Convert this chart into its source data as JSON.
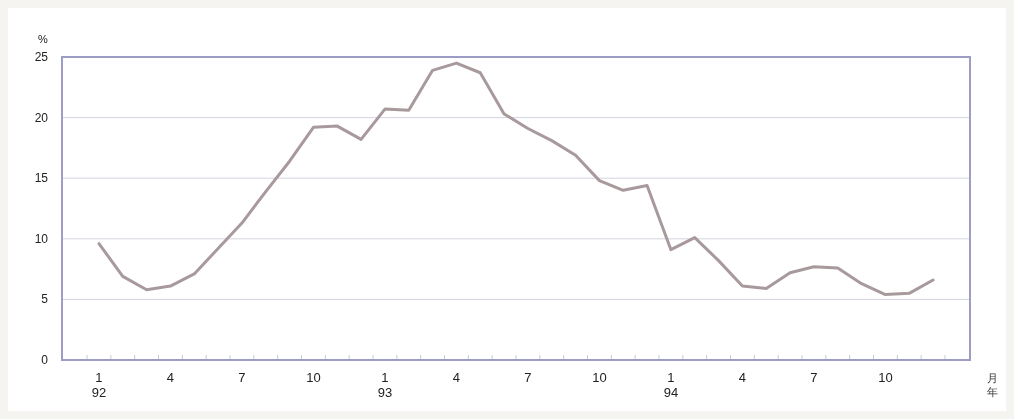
{
  "chart_data": {
    "type": "line",
    "ylabel": "%",
    "categories": [
      "1\n92",
      null,
      null,
      "4",
      null,
      null,
      "7",
      null,
      null,
      "10",
      null,
      null,
      "1\n93",
      null,
      null,
      "4",
      null,
      null,
      "7",
      null,
      null,
      "10",
      null,
      null,
      "1\n94",
      null,
      null,
      "4",
      null,
      null,
      "7",
      null,
      null,
      "10",
      null,
      null
    ],
    "series": [
      {
        "color": "#a89a9c",
        "values": [
          9.6,
          6.9,
          5.8,
          6.1,
          7.1,
          9.2,
          11.3,
          13.9,
          16.4,
          19.2,
          19.3,
          18.2,
          20.7,
          20.6,
          23.9,
          24.5,
          23.7,
          20.3,
          19.1,
          18.1,
          16.9,
          14.8,
          14.0,
          14.4,
          9.1,
          10.1,
          8.2,
          6.1,
          5.9,
          7.2,
          7.7,
          7.6,
          6.3,
          5.4,
          5.5,
          6.6
        ]
      }
    ],
    "ylim": [
      0,
      25
    ],
    "yticks": [
      0,
      5,
      10,
      15,
      20,
      25
    ],
    "grid": "y",
    "marker": "none",
    "line_style": "solid",
    "annotations": [
      "月",
      "年"
    ]
  }
}
